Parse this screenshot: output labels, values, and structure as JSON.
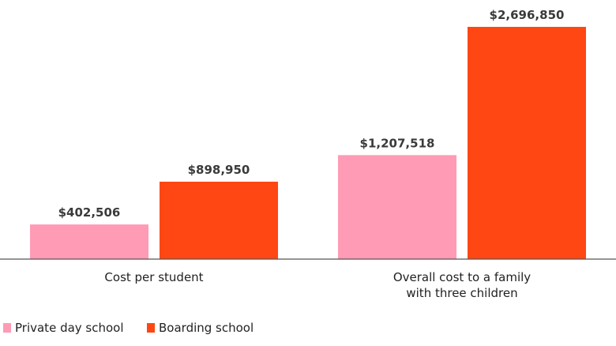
{
  "chart_data": {
    "type": "bar",
    "categories": [
      "Cost per student",
      "Overall cost to a family\nwith three children"
    ],
    "series": [
      {
        "name": "Private day school",
        "color": "#ff9bb5",
        "values": [
          402506,
          1207518
        ],
        "value_labels": [
          "$402,506",
          "$1,207,518"
        ]
      },
      {
        "name": "Boarding school",
        "color": "#ff4713",
        "values": [
          898950,
          2696850
        ],
        "value_labels": [
          "$898,950",
          "$2,696,850"
        ]
      }
    ],
    "grid": false,
    "legend": "bottom-left"
  }
}
